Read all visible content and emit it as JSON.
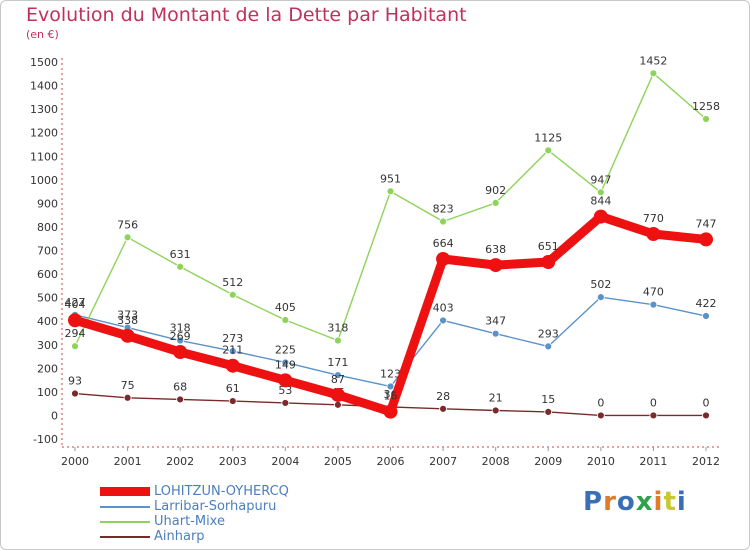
{
  "header": {
    "title": "Evolution du Montant de la Dette par Habitant",
    "subtitle": "(en €)"
  },
  "logo": {
    "text": "Proxiti",
    "colors": [
      "#3a6fb5",
      "#e07b28",
      "#3a6fb5",
      "#2ea24a",
      "#e07b28",
      "#c8c832",
      "#3a6fb5"
    ]
  },
  "chart_data": {
    "type": "line",
    "title": "Evolution du Montant de la Dette par Habitant",
    "subtitle": "(en €)",
    "categories": [
      "2000",
      "2001",
      "2002",
      "2003",
      "2004",
      "2005",
      "2006",
      "2007",
      "2008",
      "2009",
      "2010",
      "2011",
      "2012"
    ],
    "ylim": [
      -100,
      1500
    ],
    "yticks": [
      -100,
      0,
      100,
      200,
      300,
      400,
      500,
      600,
      700,
      800,
      900,
      1000,
      1100,
      1200,
      1300,
      1400,
      1500
    ],
    "grid": false,
    "legend_position": "bottom-left",
    "series": [
      {
        "name": "LOHITZUN-OYHERCQ",
        "color": "#ee1111",
        "weight": "bold",
        "values": [
          404,
          338,
          269,
          211,
          149,
          87,
          16,
          664,
          638,
          651,
          844,
          770,
          747
        ],
        "labels": [
          "404",
          "338",
          "269",
          "211",
          "149",
          "87",
          "16",
          "664",
          "638",
          "651",
          "844",
          "770",
          "747"
        ]
      },
      {
        "name": "Larribar-Sorhapuru",
        "color": "#5b93c8",
        "weight": "normal",
        "values": [
          427,
          373,
          318,
          273,
          225,
          171,
          123,
          403,
          347,
          293,
          502,
          470,
          422
        ],
        "labels": [
          "427",
          "373",
          "318",
          "273",
          "225",
          "171",
          "123",
          "403",
          "347",
          "293",
          "502",
          "470",
          "422"
        ]
      },
      {
        "name": "Uhart-Mixe",
        "color": "#8ed35a",
        "weight": "normal",
        "values": [
          294,
          756,
          631,
          512,
          405,
          318,
          951,
          823,
          902,
          1125,
          947,
          1452,
          1258
        ],
        "labels": [
          "294",
          "756",
          "631",
          "512",
          "405",
          "318",
          "951",
          "823",
          "902",
          "1125",
          "947",
          "1452",
          "1258"
        ]
      },
      {
        "name": "Ainharp",
        "color": "#7a2a2a",
        "weight": "normal",
        "values": [
          93,
          75,
          68,
          61,
          53,
          45,
          36,
          28,
          21,
          15,
          0,
          0,
          0
        ],
        "labels": [
          "93",
          "75",
          "68",
          "61",
          "53",
          "45",
          "36",
          "28",
          "21",
          "15",
          "0",
          "0",
          "0"
        ]
      }
    ]
  }
}
